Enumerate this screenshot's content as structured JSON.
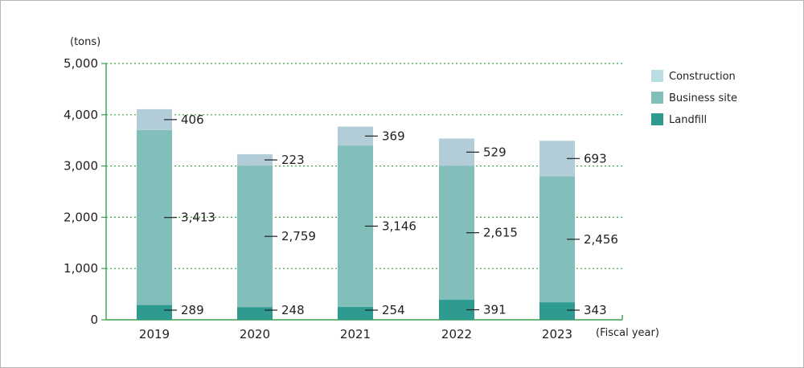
{
  "chart_data": {
    "type": "bar",
    "stacked": true,
    "title": "",
    "ylabel": "(tons)",
    "xlabel": "(Fiscal year)",
    "categories": [
      "2019",
      "2020",
      "2021",
      "2022",
      "2023"
    ],
    "ylim": [
      0,
      5000
    ],
    "yticks": [
      {
        "value": 0,
        "label": "0"
      },
      {
        "value": 1000,
        "label": "1,000"
      },
      {
        "value": 2000,
        "label": "2,000"
      },
      {
        "value": 3000,
        "label": "3,000"
      },
      {
        "value": 4000,
        "label": "4,000"
      },
      {
        "value": 5000,
        "label": "5,000"
      }
    ],
    "grid": "horizontal dotted",
    "legend_position": "right",
    "legend": [
      {
        "name": "Construction",
        "color": "#b9dde2"
      },
      {
        "name": "Business site",
        "color": "#82bfbb"
      },
      {
        "name": "Landfill",
        "color": "#2e9a90"
      }
    ],
    "series": [
      {
        "name": "Landfill",
        "color": "#2e9a90",
        "values": [
          289,
          248,
          254,
          391,
          343
        ],
        "labels": [
          "289",
          "248",
          "254",
          "391",
          "343"
        ]
      },
      {
        "name": "Business site",
        "color": "#82bfbb",
        "values": [
          3413,
          2759,
          3146,
          2615,
          2456
        ],
        "labels": [
          "3,413",
          "2,759",
          "3,146",
          "2,615",
          "2,456"
        ]
      },
      {
        "name": "Construction",
        "color": "#b3cdd8",
        "values": [
          406,
          223,
          369,
          529,
          693
        ],
        "labels": [
          "406",
          "223",
          "369",
          "529",
          "693"
        ]
      }
    ]
  }
}
